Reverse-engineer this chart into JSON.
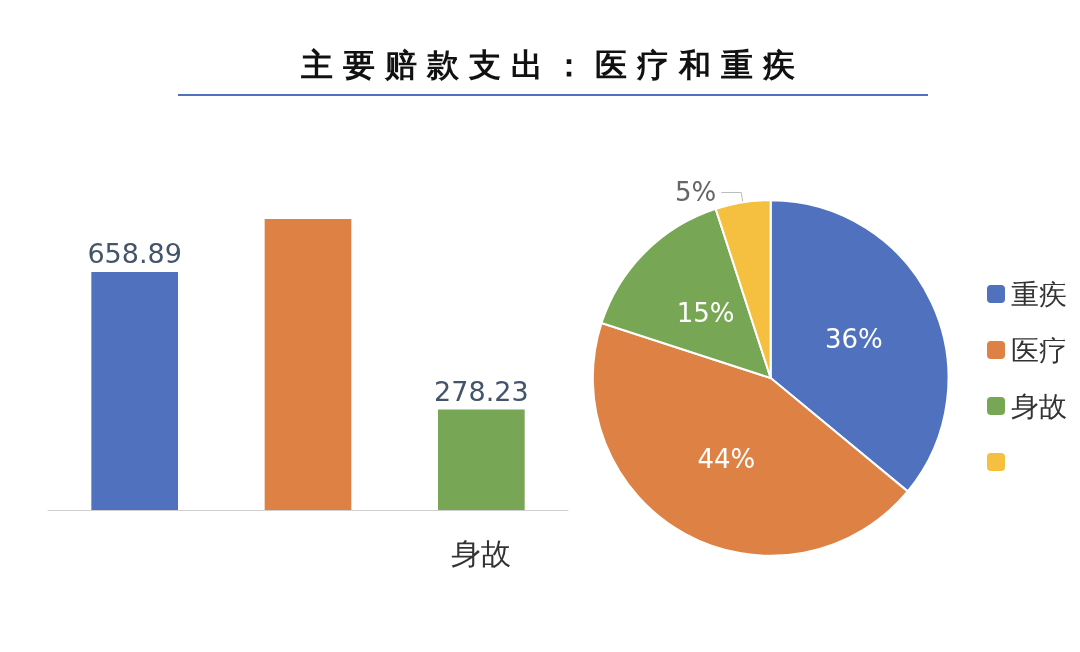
{
  "chart_data": [
    {
      "type": "bar",
      "title": "主要赔款支出：医疗和重疾",
      "categories": [
        null,
        null,
        "身故"
      ],
      "values": [
        658.89,
        806,
        278.23
      ],
      "colors": [
        "#4f71be",
        "#dd8244",
        "#77a654"
      ],
      "value_labels": [
        "658.89",
        null,
        "278.23"
      ],
      "tick_labels": "x"
    },
    {
      "type": "pie",
      "categories": [
        "重疾",
        "医疗",
        "身故",
        null
      ],
      "values": [
        36,
        44,
        15,
        5
      ],
      "colors": [
        "#4f71be",
        "#dd8244",
        "#77a654",
        "#f5c040"
      ],
      "value_labels": [
        "36%",
        "44%",
        "15%",
        "5%"
      ],
      "legend": "right"
    }
  ]
}
